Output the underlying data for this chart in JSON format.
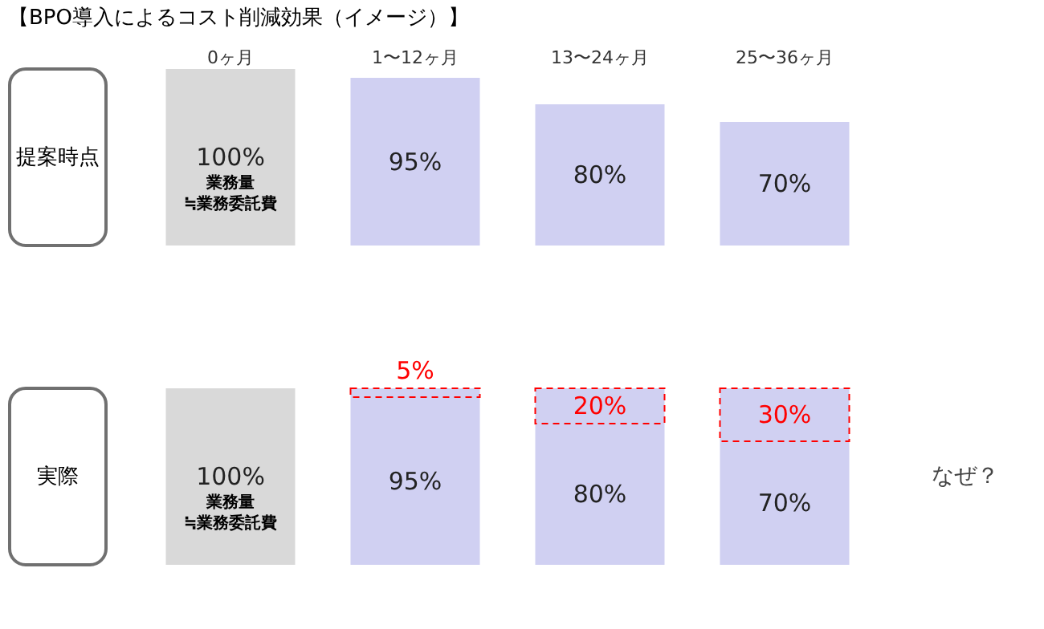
{
  "chart_data": [
    {
      "type": "bar",
      "title": "【BPO導入によるコスト削減効果（イメージ）】",
      "categories": [
        "0ヶ月",
        "1〜12ヶ月",
        "13〜24ヶ月",
        "25〜36ヶ月"
      ],
      "tick_labels": "x",
      "series": [
        {
          "color": "#d9d9d9",
          "values": [
            100,
            null,
            null,
            null
          ],
          "value_labels": [
            "100%",
            null,
            null,
            null
          ]
        },
        {
          "color": "#d0d0f2",
          "values": [
            null,
            95,
            80,
            70
          ],
          "value_labels": [
            null,
            "95%",
            "80%",
            "70%"
          ]
        }
      ],
      "annotations": [
        "提案時点",
        "業務量",
        "≒業務委託費"
      ]
    },
    {
      "type": "bar",
      "categories": [
        null,
        null,
        null,
        null
      ],
      "tick_labels": false,
      "stacked": true,
      "series": [
        {
          "color": "#d9d9d9",
          "values": [
            100,
            null,
            null,
            null
          ],
          "value_labels": [
            "100%",
            null,
            null,
            null
          ]
        },
        {
          "color": "#d0d0f2",
          "values": [
            null,
            95,
            80,
            70
          ],
          "value_labels": [
            null,
            "95%",
            "80%",
            "70%"
          ]
        },
        {
          "color": "#d0d0f2",
          "line_style": "dashed",
          "values": [
            null,
            5,
            20,
            30
          ],
          "value_labels": [
            null,
            "5%",
            "20%",
            "30%"
          ]
        }
      ],
      "annotations": [
        "実際",
        "業務量",
        "≒業務委託費",
        "なぜ？"
      ]
    }
  ]
}
